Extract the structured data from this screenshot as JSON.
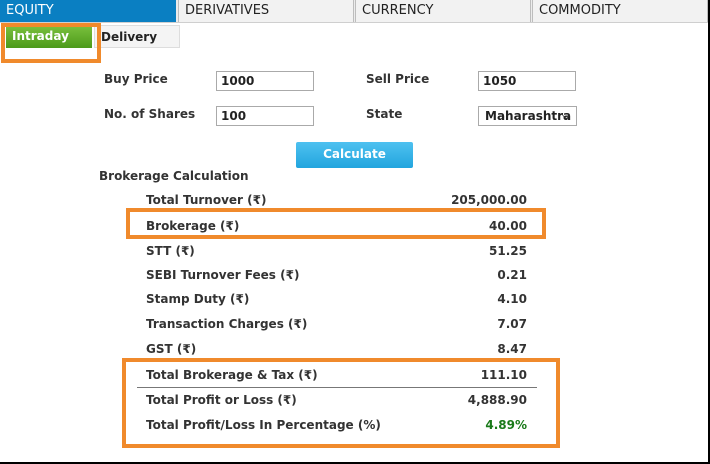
{
  "tabs": [
    {
      "label": "EQUITY",
      "active": true
    },
    {
      "label": "DERIVATIVES",
      "active": false
    },
    {
      "label": "CURRENCY",
      "active": false
    },
    {
      "label": "COMMODITY",
      "active": false
    }
  ],
  "subtabs": [
    {
      "label": "Intraday",
      "active": true
    },
    {
      "label": "Delivery",
      "active": false
    }
  ],
  "form": {
    "buy_price_label": "Buy Price",
    "buy_price_value": "1000",
    "sell_price_label": "Sell Price",
    "sell_price_value": "1050",
    "shares_label": "No. of Shares",
    "shares_value": "100",
    "state_label": "State",
    "state_value": "Maharashtra"
  },
  "calculate_label": "Calculate",
  "section_title": "Brokerage Calculation",
  "results": [
    {
      "label": "Total Turnover (₹)",
      "value": "205,000.00"
    },
    {
      "label": "Brokerage (₹)",
      "value": "40.00"
    },
    {
      "label": "STT (₹)",
      "value": "51.25"
    },
    {
      "label": "SEBI Turnover Fees (₹)",
      "value": "0.21"
    },
    {
      "label": "Stamp Duty (₹)",
      "value": "4.10"
    },
    {
      "label": "Transaction Charges (₹)",
      "value": "7.07"
    },
    {
      "label": "GST (₹)",
      "value": "8.47"
    },
    {
      "label": "Total Brokerage & Tax (₹)",
      "value": "111.10"
    },
    {
      "label": "Total Profit or Loss (₹)",
      "value": "4,888.90"
    },
    {
      "label": "Total Profit/Loss In Percentage (%)",
      "value": "4.89%"
    }
  ],
  "colors": {
    "highlight": "#f08a2c",
    "tab_active": "#0a7fc2",
    "subtab_active": "#5aa82a",
    "button": "#2aaee3",
    "positive": "#1a7a1a"
  }
}
